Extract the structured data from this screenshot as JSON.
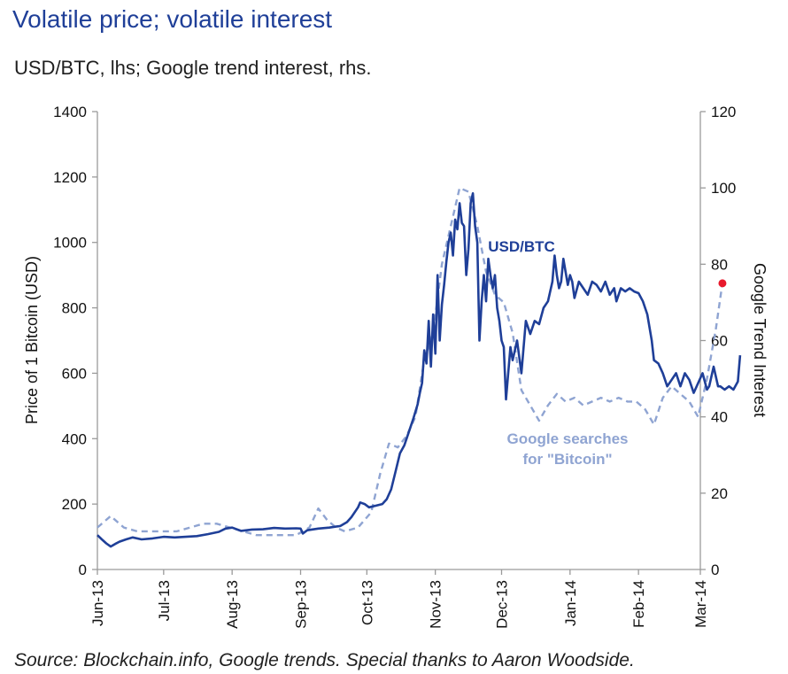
{
  "header": {
    "title": "Volatile price; volatile interest",
    "subtitle": "USD/BTC, lhs; Google trend interest, rhs."
  },
  "footer": {
    "source": "Source: Blockchain.info, Google trends. Special thanks to Aaron Woodside."
  },
  "colors": {
    "price": "#1f3f98",
    "trends": "#8fa4d2",
    "marker": "#e8192c",
    "axis": "#9a9a9a"
  },
  "chart_data": {
    "type": "line",
    "title": "Volatile price; volatile interest",
    "subtitle": "USD/BTC, lhs; Google trend interest, rhs.",
    "xlabel": "",
    "ylabel_left": "Price of 1 Bitcoin (USD)",
    "ylabel_right": "Google Trend Interest",
    "x_range_days": [
      0,
      273
    ],
    "x_tick_labels": [
      "Jun-13",
      "Jul-13",
      "Aug-13",
      "Sep-13",
      "Oct-13",
      "Nov-13",
      "Dec-13",
      "Jan-14",
      "Feb-14",
      "Mar-14"
    ],
    "x_tick_days": [
      0,
      30,
      61,
      92,
      122,
      153,
      183,
      214,
      245,
      273
    ],
    "ylim_left": [
      0,
      1400
    ],
    "yticks_left": [
      0,
      200,
      400,
      600,
      800,
      1000,
      1200,
      1400
    ],
    "ylim_right": [
      0,
      120
    ],
    "yticks_right": [
      0,
      20,
      40,
      60,
      80,
      100,
      120
    ],
    "grid": false,
    "series": [
      {
        "name": "USD/BTC",
        "axis": "left",
        "label": "USD/BTC",
        "points": [
          [
            0,
            105
          ],
          [
            2,
            92
          ],
          [
            4,
            80
          ],
          [
            6,
            70
          ],
          [
            8,
            78
          ],
          [
            10,
            85
          ],
          [
            13,
            92
          ],
          [
            16,
            98
          ],
          [
            20,
            92
          ],
          [
            25,
            95
          ],
          [
            30,
            100
          ],
          [
            35,
            98
          ],
          [
            40,
            100
          ],
          [
            45,
            102
          ],
          [
            50,
            108
          ],
          [
            55,
            115
          ],
          [
            58,
            125
          ],
          [
            61,
            128
          ],
          [
            65,
            118
          ],
          [
            70,
            122
          ],
          [
            75,
            123
          ],
          [
            80,
            127
          ],
          [
            85,
            125
          ],
          [
            90,
            126
          ],
          [
            92,
            125
          ],
          [
            93,
            110
          ],
          [
            95,
            120
          ],
          [
            100,
            125
          ],
          [
            105,
            128
          ],
          [
            110,
            133
          ],
          [
            113,
            145
          ],
          [
            115,
            160
          ],
          [
            118,
            190
          ],
          [
            119,
            205
          ],
          [
            121,
            200
          ],
          [
            123,
            190
          ],
          [
            126,
            195
          ],
          [
            129,
            200
          ],
          [
            131,
            215
          ],
          [
            133,
            245
          ],
          [
            135,
            300
          ],
          [
            137,
            355
          ],
          [
            139,
            380
          ],
          [
            141,
            420
          ],
          [
            143,
            460
          ],
          [
            145,
            505
          ],
          [
            146,
            540
          ],
          [
            147,
            570
          ],
          [
            148,
            670
          ],
          [
            149,
            630
          ],
          [
            150,
            760
          ],
          [
            151,
            620
          ],
          [
            152,
            780
          ],
          [
            153,
            660
          ],
          [
            154,
            900
          ],
          [
            155,
            700
          ],
          [
            156,
            810
          ],
          [
            157,
            870
          ],
          [
            158,
            940
          ],
          [
            159,
            1000
          ],
          [
            160,
            1030
          ],
          [
            161,
            960
          ],
          [
            162,
            1070
          ],
          [
            163,
            1040
          ],
          [
            164,
            1120
          ],
          [
            165,
            1060
          ],
          [
            166,
            1050
          ],
          [
            167,
            900
          ],
          [
            168,
            980
          ],
          [
            169,
            1120
          ],
          [
            170,
            1150
          ],
          [
            171,
            1050
          ],
          [
            172,
            1000
          ],
          [
            173,
            700
          ],
          [
            174,
            820
          ],
          [
            175,
            900
          ],
          [
            176,
            820
          ],
          [
            177,
            950
          ],
          [
            178,
            900
          ],
          [
            179,
            860
          ],
          [
            180,
            900
          ],
          [
            181,
            800
          ],
          [
            182,
            760
          ],
          [
            183,
            700
          ],
          [
            184,
            680
          ],
          [
            185,
            520
          ],
          [
            186,
            600
          ],
          [
            187,
            680
          ],
          [
            188,
            640
          ],
          [
            190,
            700
          ],
          [
            192,
            600
          ],
          [
            194,
            760
          ],
          [
            196,
            720
          ],
          [
            198,
            760
          ],
          [
            200,
            750
          ],
          [
            202,
            800
          ],
          [
            204,
            820
          ],
          [
            206,
            880
          ],
          [
            207,
            960
          ],
          [
            208,
            900
          ],
          [
            209,
            860
          ],
          [
            210,
            880
          ],
          [
            211,
            950
          ],
          [
            212,
            910
          ],
          [
            213,
            870
          ],
          [
            214,
            900
          ],
          [
            215,
            880
          ],
          [
            216,
            830
          ],
          [
            218,
            880
          ],
          [
            220,
            860
          ],
          [
            222,
            840
          ],
          [
            224,
            880
          ],
          [
            226,
            870
          ],
          [
            228,
            850
          ],
          [
            230,
            880
          ],
          [
            232,
            840
          ],
          [
            234,
            860
          ],
          [
            235,
            820
          ],
          [
            237,
            860
          ],
          [
            239,
            850
          ],
          [
            241,
            860
          ],
          [
            243,
            850
          ],
          [
            245,
            845
          ],
          [
            247,
            820
          ],
          [
            249,
            780
          ],
          [
            251,
            700
          ],
          [
            252,
            640
          ],
          [
            254,
            630
          ],
          [
            256,
            600
          ],
          [
            258,
            560
          ],
          [
            260,
            580
          ],
          [
            262,
            600
          ],
          [
            264,
            560
          ],
          [
            266,
            600
          ],
          [
            268,
            580
          ],
          [
            270,
            540
          ],
          [
            272,
            570
          ],
          [
            274,
            600
          ],
          [
            276,
            550
          ],
          [
            277,
            560
          ],
          [
            279,
            620
          ],
          [
            281,
            560
          ],
          [
            282,
            560
          ],
          [
            284,
            550
          ],
          [
            286,
            560
          ],
          [
            288,
            550
          ],
          [
            290,
            575
          ],
          [
            291,
            655
          ]
        ]
      },
      {
        "name": "Google searches for \"Bitcoin\"",
        "axis": "right",
        "label_line1": "Google searches",
        "label_line2": "for \"Bitcoin\"",
        "points": [
          [
            0,
            11
          ],
          [
            6,
            14
          ],
          [
            12,
            11
          ],
          [
            18,
            10
          ],
          [
            24,
            10
          ],
          [
            30,
            10
          ],
          [
            36,
            10
          ],
          [
            42,
            11
          ],
          [
            48,
            12
          ],
          [
            54,
            12
          ],
          [
            60,
            11
          ],
          [
            66,
            10
          ],
          [
            72,
            9
          ],
          [
            78,
            9
          ],
          [
            84,
            9
          ],
          [
            90,
            9
          ],
          [
            96,
            11
          ],
          [
            100,
            16
          ],
          [
            104,
            13
          ],
          [
            108,
            11
          ],
          [
            112,
            10
          ],
          [
            118,
            11
          ],
          [
            124,
            15
          ],
          [
            128,
            25
          ],
          [
            132,
            33
          ],
          [
            136,
            32
          ],
          [
            140,
            35
          ],
          [
            144,
            40
          ],
          [
            148,
            55
          ],
          [
            152,
            62
          ],
          [
            156,
            80
          ],
          [
            160,
            90
          ],
          [
            164,
            100
          ],
          [
            168,
            99
          ],
          [
            172,
            90
          ],
          [
            176,
            78
          ],
          [
            180,
            72
          ],
          [
            184,
            70
          ],
          [
            188,
            62
          ],
          [
            192,
            47
          ],
          [
            196,
            43
          ],
          [
            200,
            39
          ],
          [
            204,
            43
          ],
          [
            208,
            46
          ],
          [
            212,
            44
          ],
          [
            216,
            45
          ],
          [
            220,
            43
          ],
          [
            224,
            44
          ],
          [
            228,
            45
          ],
          [
            232,
            44
          ],
          [
            236,
            45
          ],
          [
            240,
            44
          ],
          [
            244,
            44
          ],
          [
            248,
            42
          ],
          [
            252,
            38
          ],
          [
            256,
            45
          ],
          [
            260,
            48
          ],
          [
            264,
            46
          ],
          [
            268,
            44
          ],
          [
            272,
            40
          ],
          [
            276,
            50
          ],
          [
            280,
            63
          ],
          [
            283,
            75
          ]
        ]
      }
    ],
    "annotations": [
      {
        "text": "USD/BTC",
        "series": "USD/BTC"
      },
      {
        "text": "Google searches for \"Bitcoin\"",
        "series": "Google searches for \"Bitcoin\""
      }
    ]
  }
}
